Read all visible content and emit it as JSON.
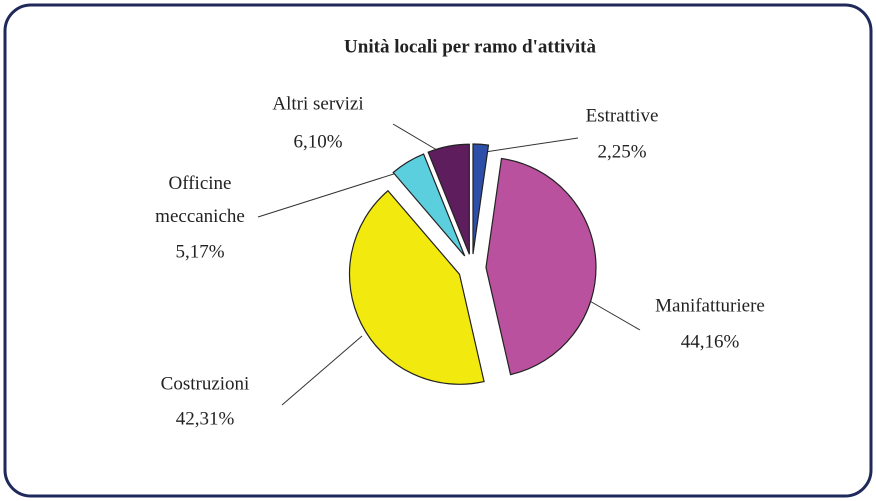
{
  "chart_data": {
    "type": "pie",
    "title": "Unità locali per ramo d'attività",
    "categories": [
      "Estrattive",
      "Manifatturiere",
      "Costruzioni",
      "Officine meccaniche",
      "Altri servizi"
    ],
    "values": [
      2.25,
      44.16,
      42.31,
      5.17,
      6.1
    ],
    "value_labels": [
      "2,25%",
      "44,16%",
      "42,31%",
      "5,17%",
      "6,10%"
    ],
    "colors": [
      "#2e4fa8",
      "#b9519e",
      "#f2ea0e",
      "#5ccfdf",
      "#5e1e5e"
    ]
  }
}
